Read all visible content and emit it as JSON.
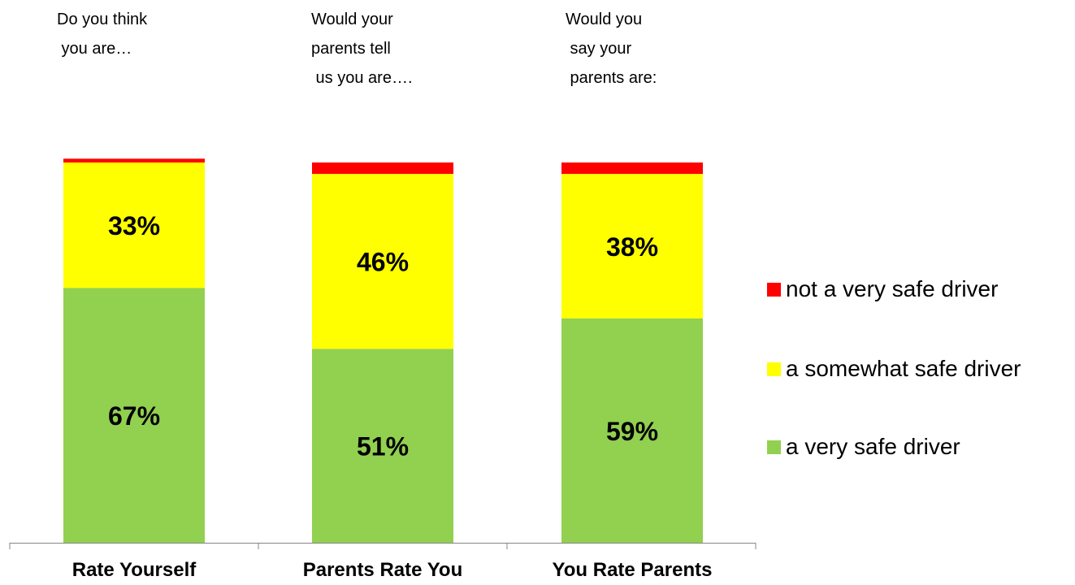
{
  "questions": [
    {
      "lines": [
        "Do you think",
        " you are…"
      ]
    },
    {
      "lines": [
        "Would your",
        "parents tell",
        " us you are…."
      ]
    },
    {
      "lines": [
        "Would you",
        " say your",
        " parents are:"
      ]
    }
  ],
  "legend": [
    {
      "label": "not a very safe driver",
      "color": "#FF0000"
    },
    {
      "label": "a somewhat safe driver",
      "color": "#FFFF00"
    },
    {
      "label": "a very safe driver",
      "color": "#92D050"
    }
  ],
  "chart_data": {
    "type": "bar",
    "stacked": true,
    "categories": [
      "Rate Yourself",
      "Parents Rate You",
      "You Rate Parents"
    ],
    "series": [
      {
        "name": "a very safe driver",
        "color": "#92D050",
        "values": [
          67,
          51,
          59
        ],
        "labels": [
          "67%",
          "51%",
          "59%"
        ]
      },
      {
        "name": "a somewhat safe driver",
        "color": "#FFFF00",
        "values": [
          33,
          46,
          38
        ],
        "labels": [
          "33%",
          "46%",
          "38%"
        ]
      },
      {
        "name": "not a very safe driver",
        "color": "#FF0000",
        "values": [
          1,
          3,
          3
        ],
        "labels": [
          "",
          "",
          ""
        ]
      }
    ],
    "ylim": [
      0,
      100
    ],
    "legend_position": "right",
    "grid": false
  }
}
